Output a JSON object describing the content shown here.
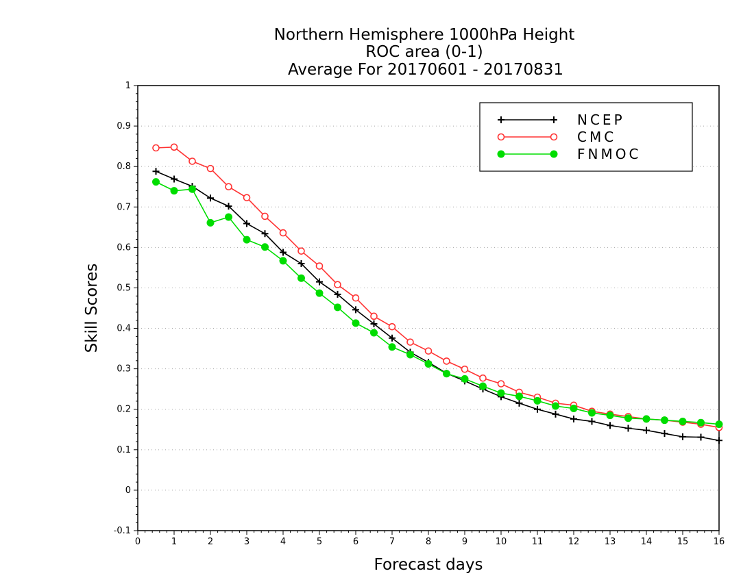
{
  "chart_data": {
    "type": "line",
    "title_lines": [
      "Northern Hemisphere 1000hPa Height",
      "ROC area (0-1)",
      "Average For 20170601 - 20170831"
    ],
    "xlabel": "Forecast days",
    "ylabel": "Skill Scores",
    "xlim": [
      0,
      16
    ],
    "ylim": [
      -0.1,
      1
    ],
    "x_ticks": [
      0,
      1,
      2,
      3,
      4,
      5,
      6,
      7,
      8,
      9,
      10,
      11,
      12,
      13,
      14,
      15,
      16
    ],
    "x_tick_labels": [
      "0",
      "1",
      "2",
      "3",
      "4",
      "5",
      "6",
      "7",
      "8",
      "9",
      "10",
      "11",
      "12",
      "13",
      "14",
      "15",
      "16"
    ],
    "y_ticks": [
      -0.1,
      0,
      0.1,
      0.2,
      0.3,
      0.4,
      0.5,
      0.6,
      0.7,
      0.8,
      0.9,
      1
    ],
    "y_tick_labels": [
      "-0.1",
      "0",
      "0.1",
      "0.2",
      "0.3",
      "0.4",
      "0.5",
      "0.6",
      "0.7",
      "0.8",
      "0.9",
      "1"
    ],
    "grid": true,
    "legend_position": "top-right",
    "x": [
      0.5,
      1,
      1.5,
      2,
      2.5,
      3,
      3.5,
      4,
      4.5,
      5,
      5.5,
      6,
      6.5,
      7,
      7.5,
      8,
      8.5,
      9,
      9.5,
      10,
      10.5,
      11,
      11.5,
      12,
      12.5,
      13,
      13.5,
      14,
      14.5,
      15,
      15.5,
      16
    ],
    "series": [
      {
        "name": "NCEP",
        "color": "#000000",
        "marker": "plus",
        "values": [
          0.788,
          0.769,
          0.751,
          0.722,
          0.702,
          0.659,
          0.634,
          0.588,
          0.56,
          0.515,
          0.484,
          0.446,
          0.411,
          0.376,
          0.341,
          0.316,
          0.289,
          0.27,
          0.25,
          0.231,
          0.215,
          0.2,
          0.188,
          0.176,
          0.17,
          0.16,
          0.153,
          0.148,
          0.14,
          0.132,
          0.131,
          0.123
        ]
      },
      {
        "name": "CMC",
        "color": "#ff3333",
        "marker": "open-circle",
        "values": [
          0.846,
          0.848,
          0.813,
          0.795,
          0.75,
          0.723,
          0.677,
          0.636,
          0.591,
          0.554,
          0.508,
          0.475,
          0.43,
          0.404,
          0.366,
          0.344,
          0.319,
          0.299,
          0.277,
          0.263,
          0.242,
          0.23,
          0.215,
          0.21,
          0.195,
          0.188,
          0.182,
          0.176,
          0.173,
          0.168,
          0.163,
          0.155
        ]
      },
      {
        "name": "FNMOC",
        "color": "#00dd00",
        "marker": "filled-circle",
        "values": [
          0.762,
          0.74,
          0.744,
          0.661,
          0.675,
          0.619,
          0.601,
          0.567,
          0.524,
          0.487,
          0.452,
          0.413,
          0.389,
          0.354,
          0.335,
          0.312,
          0.288,
          0.275,
          0.257,
          0.24,
          0.232,
          0.221,
          0.208,
          0.202,
          0.191,
          0.185,
          0.178,
          0.176,
          0.173,
          0.17,
          0.167,
          0.163
        ]
      }
    ]
  }
}
